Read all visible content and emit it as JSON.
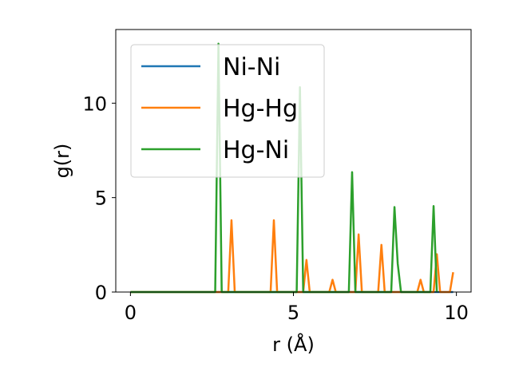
{
  "chart_data": {
    "type": "line",
    "title": "",
    "xlabel": "r (Å)",
    "ylabel": "g(r)",
    "xlim": [
      -0.45,
      10.45
    ],
    "ylim": [
      0,
      13.9
    ],
    "xticks": [
      0,
      5,
      10
    ],
    "yticks": [
      0,
      5,
      10
    ],
    "grid": false,
    "legend_position": "upper-left",
    "series": [
      {
        "name": "Ni-Ni",
        "color": "#1f77b4",
        "x": [
          0,
          9.9
        ],
        "y": [
          0,
          0
        ]
      },
      {
        "name": "Hg-Hg",
        "color": "#ff7f0e",
        "x": [
          0,
          3.0,
          3.1,
          3.2,
          4.3,
          4.4,
          4.5,
          5.3,
          5.4,
          5.5,
          6.1,
          6.2,
          6.3,
          6.9,
          7.0,
          7.1,
          7.6,
          7.7,
          7.8,
          8.8,
          8.9,
          9.0,
          9.3,
          9.4,
          9.5,
          9.8,
          9.9
        ],
        "y": [
          0,
          0,
          3.8,
          0,
          0,
          3.8,
          0,
          0,
          1.7,
          0,
          0,
          0.65,
          0,
          0,
          3.05,
          0,
          0,
          2.5,
          0,
          0,
          0.65,
          0,
          0,
          2.0,
          0,
          0,
          1.05
        ]
      },
      {
        "name": "Hg-Ni",
        "color": "#2ca02c",
        "x": [
          0,
          2.6,
          2.7,
          2.8,
          5.1,
          5.2,
          5.3,
          6.7,
          6.8,
          6.9,
          8.0,
          8.1,
          8.2,
          8.3,
          9.2,
          9.3,
          9.4
        ],
        "y": [
          0,
          0,
          13.15,
          0,
          0,
          10.85,
          0,
          0,
          6.35,
          0,
          0,
          4.5,
          1.5,
          0,
          0,
          4.55,
          0
        ]
      }
    ]
  },
  "colors": {
    "frame": "#000000",
    "legend_border": "#cccccc",
    "legend_bg": "#ffffff"
  }
}
